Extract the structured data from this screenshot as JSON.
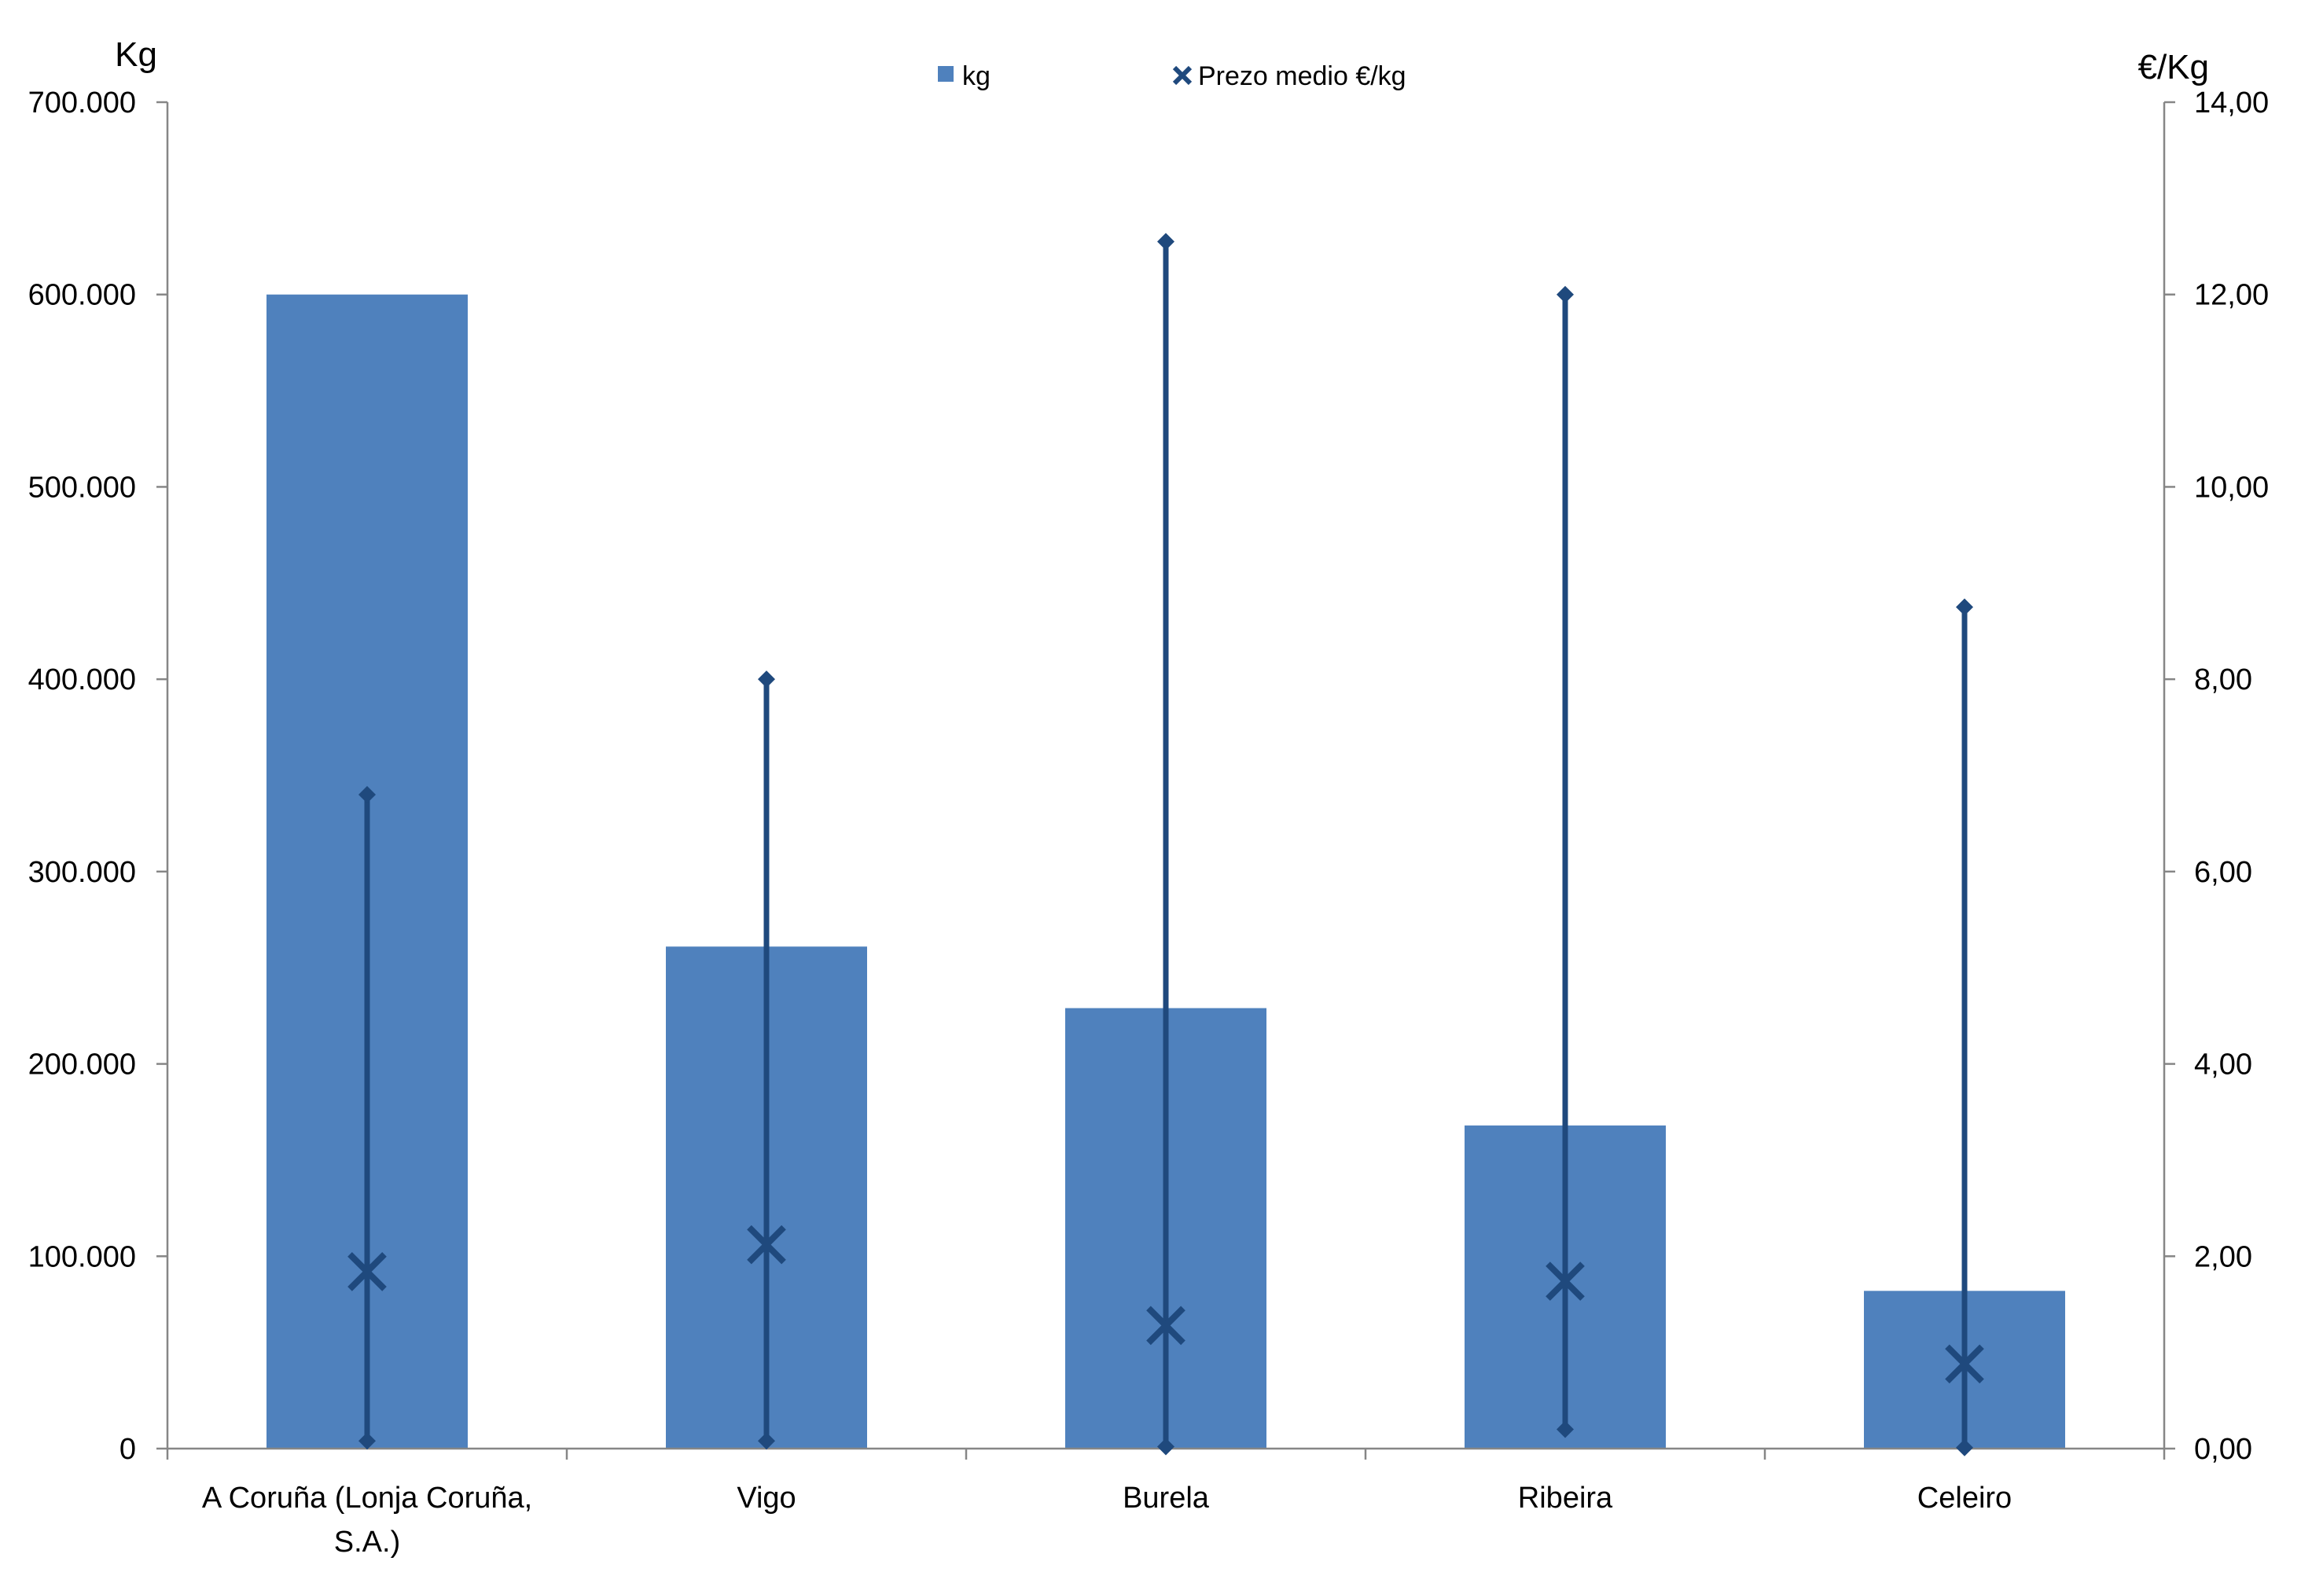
{
  "chart_data": {
    "type": "bar",
    "left_axis_label": "Kg",
    "right_axis_label": "€/Kg",
    "categories": [
      "A Coruña (Lonja Coruña,|S.A.)",
      "Vigo",
      "Burela",
      "Ribeira",
      "Celeiro"
    ],
    "left_ylim": [
      0,
      700000
    ],
    "left_ticks": [
      {
        "value": 0,
        "label": "0"
      },
      {
        "value": 100000,
        "label": "100.000"
      },
      {
        "value": 200000,
        "label": "200.000"
      },
      {
        "value": 300000,
        "label": "300.000"
      },
      {
        "value": 400000,
        "label": "400.000"
      },
      {
        "value": 500000,
        "label": "500.000"
      },
      {
        "value": 600000,
        "label": "600.000"
      },
      {
        "value": 700000,
        "label": "700.000"
      }
    ],
    "right_ylim": [
      0,
      14
    ],
    "right_ticks": [
      {
        "value": 0,
        "label": "0,00"
      },
      {
        "value": 2,
        "label": "2,00"
      },
      {
        "value": 4,
        "label": "4,00"
      },
      {
        "value": 6,
        "label": "6,00"
      },
      {
        "value": 8,
        "label": "8,00"
      },
      {
        "value": 10,
        "label": "10,00"
      },
      {
        "value": 12,
        "label": "12,00"
      },
      {
        "value": 14,
        "label": "14,00"
      }
    ],
    "series": [
      {
        "name": "kg",
        "type": "bar",
        "axis": "left",
        "color": "#4f81bd",
        "values": [
          600000,
          261000,
          229000,
          168000,
          82000
        ]
      },
      {
        "name": "Prezo medio €/kg",
        "type": "range-marker",
        "axis": "right",
        "color": "#1f497d",
        "mean": [
          1.84,
          2.12,
          1.28,
          1.74,
          0.88
        ],
        "min": [
          0.08,
          0.08,
          0.02,
          0.2,
          0.01
        ],
        "max": [
          6.8,
          8.0,
          12.55,
          12.0,
          8.75
        ]
      }
    ],
    "legend": {
      "position": "top-center",
      "items": [
        {
          "label": "kg",
          "marker": "square",
          "color": "#4f81bd"
        },
        {
          "label": "Prezo medio €/kg",
          "marker": "x",
          "color": "#1f497d"
        }
      ]
    },
    "colors": {
      "bar": "#4f81bd",
      "range": "#1f497d",
      "axis": "#868686"
    },
    "grid": false
  }
}
